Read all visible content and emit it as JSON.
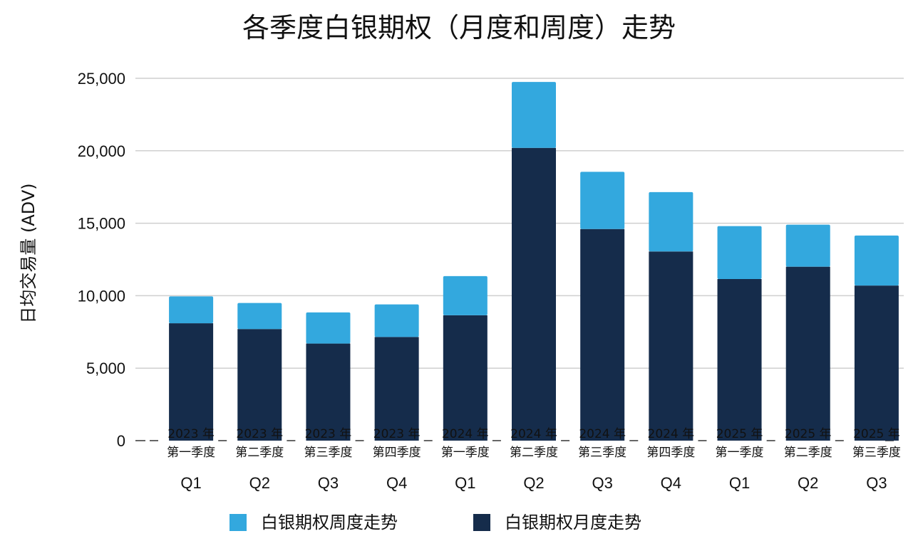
{
  "chart_data": {
    "type": "bar",
    "stacked": true,
    "title": "各季度白银期权（月度和周度）走势",
    "ylabel": "日均交易量 (ADV)",
    "xlabel": "",
    "ylim": [
      0,
      25000
    ],
    "yticks": [
      0,
      5000,
      10000,
      15000,
      20000,
      25000
    ],
    "ytick_labels": [
      "0",
      "5,000",
      "10,000",
      "15,000",
      "20,000",
      "25,000"
    ],
    "grid": true,
    "legend_position": "bottom",
    "categories": [
      {
        "year": "2023 年",
        "quarter_cn": "第一季度",
        "quarter": "Q1"
      },
      {
        "year": "2023 年",
        "quarter_cn": "第二季度",
        "quarter": "Q2"
      },
      {
        "year": "2023 年",
        "quarter_cn": "第三季度",
        "quarter": "Q3"
      },
      {
        "year": "2023 年",
        "quarter_cn": "第四季度",
        "quarter": "Q4"
      },
      {
        "year": "2024 年",
        "quarter_cn": "第一季度",
        "quarter": "Q1"
      },
      {
        "year": "2024 年",
        "quarter_cn": "第二季度",
        "quarter": "Q2"
      },
      {
        "year": "2024 年",
        "quarter_cn": "第三季度",
        "quarter": "Q3"
      },
      {
        "year": "2024 年",
        "quarter_cn": "第四季度",
        "quarter": "Q4"
      },
      {
        "year": "2025 年",
        "quarter_cn": "第一季度",
        "quarter": "Q1"
      },
      {
        "year": "2025 年",
        "quarter_cn": "第二季度",
        "quarter": "Q2"
      },
      {
        "year": "2025 年",
        "quarter_cn": "第三季度",
        "quarter": "Q3"
      }
    ],
    "series": [
      {
        "name": "白银期权月度走势",
        "color": "#152c4b",
        "values": [
          8100,
          7700,
          6700,
          7150,
          8650,
          20200,
          14600,
          13050,
          11150,
          12000,
          10700
        ]
      },
      {
        "name": "白银期权周度走势",
        "color": "#33a8de",
        "values": [
          1850,
          1800,
          2150,
          2250,
          2700,
          4550,
          3950,
          4100,
          3650,
          2900,
          3450
        ]
      }
    ],
    "legend_order": [
      1,
      0
    ]
  }
}
